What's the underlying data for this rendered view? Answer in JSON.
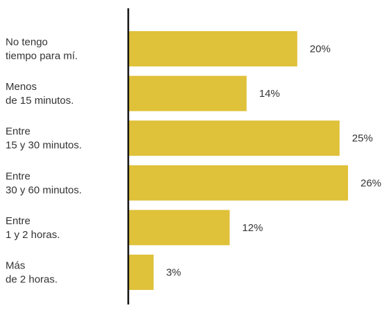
{
  "chart_data": {
    "type": "bar",
    "orientation": "horizontal",
    "categories": [
      [
        "No tengo",
        "tiempo para mí."
      ],
      [
        "Menos",
        "de 15 minutos."
      ],
      [
        "Entre",
        "15 y 30 minutos."
      ],
      [
        "Entre",
        "30 y 60 minutos."
      ],
      [
        "Entre",
        "1 y 2 horas."
      ],
      [
        "Más",
        "de 2 horas."
      ]
    ],
    "values": [
      20,
      14,
      25,
      26,
      12,
      3
    ],
    "value_labels": [
      "20%",
      "14%",
      "25%",
      "26%",
      "12%",
      "3%"
    ],
    "unit": "%",
    "xlim": [
      0,
      26
    ],
    "bar_color": "#DFC13A",
    "axis_color": "#111111",
    "grid": false,
    "legend": "none"
  }
}
